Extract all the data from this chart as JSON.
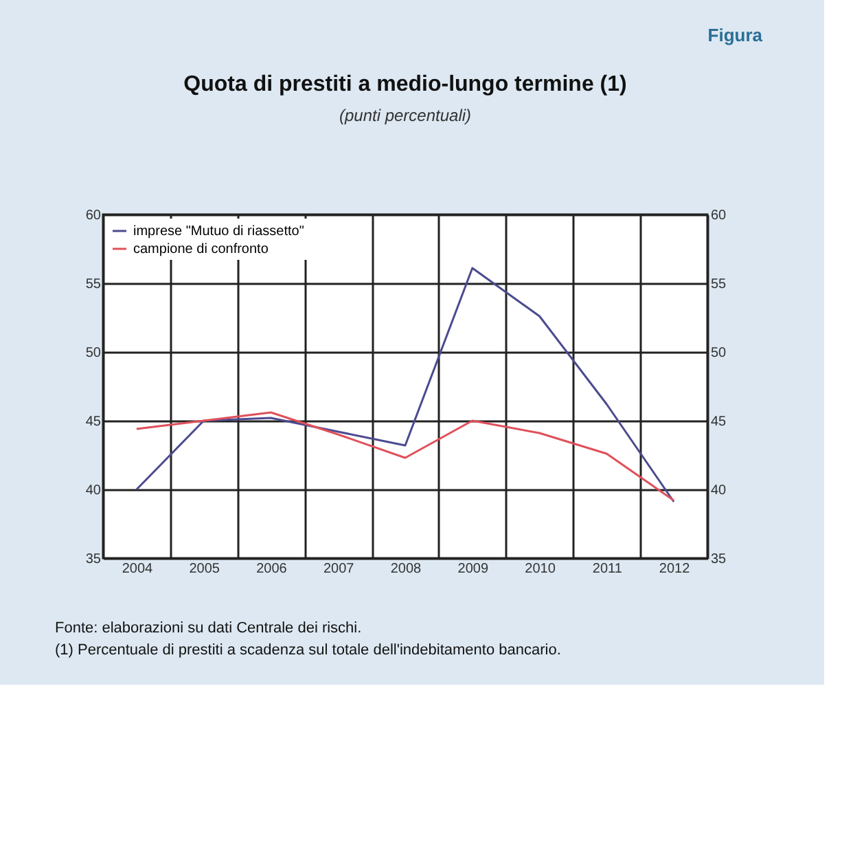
{
  "chart_data": {
    "type": "line",
    "title": "Quota di prestiti a medio-lungo termine (1)",
    "subtitle": "(punti percentuali)",
    "categories": [
      "2004",
      "2005",
      "2006",
      "2007",
      "2008",
      "2009",
      "2010",
      "2011",
      "2012"
    ],
    "series": [
      {
        "name": "imprese \"Mutuo di riassetto\"",
        "color": "#4b4b8f",
        "values": [
          40,
          45,
          45.2,
          44.2,
          43.2,
          56.1,
          52.6,
          46.2,
          39.1
        ]
      },
      {
        "name": "campione di confronto",
        "color": "#e0505a",
        "values": [
          44.4,
          45,
          45.6,
          44,
          42.3,
          45,
          44.1,
          42.6,
          39.2
        ]
      }
    ],
    "ylim": [
      35,
      60
    ],
    "yticks": [
      35,
      40,
      45,
      50,
      55,
      60
    ],
    "y2lim": [
      35,
      60
    ],
    "y2ticks": [
      35,
      40,
      45,
      50,
      55,
      60
    ],
    "grid": true,
    "legend": "top left",
    "marker": "none",
    "line_style": "solid",
    "annotations": [
      "Figura",
      "Fonte: elaborazioni su dati Centrale dei rischi.",
      "(1) Percentuale di prestiti a scadenza sul totale dell'indebitamento bancario."
    ]
  }
}
